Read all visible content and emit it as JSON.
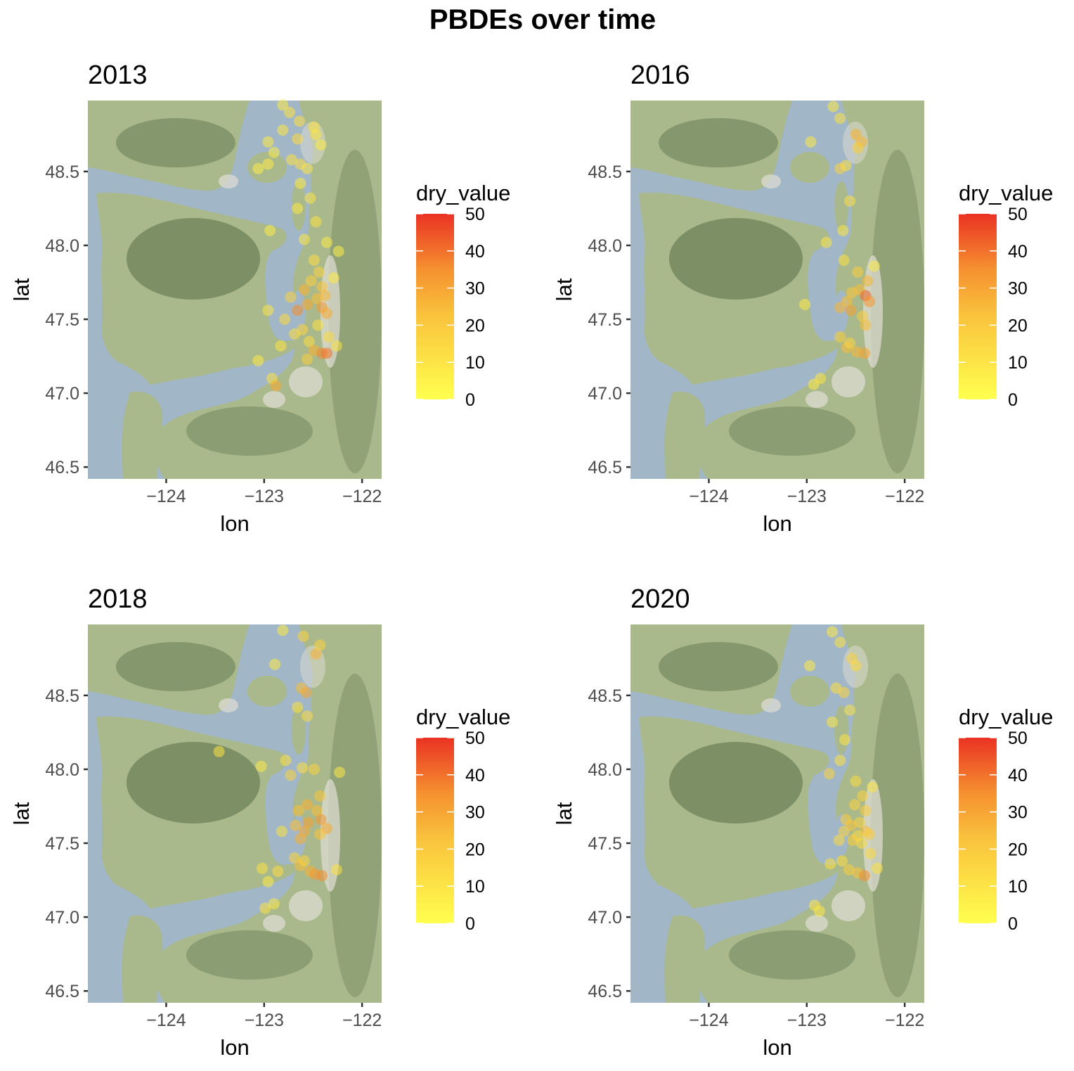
{
  "title": "PBDEs over time",
  "colors": {
    "water": "#a1b6c6",
    "land": "#a9b98c",
    "mountain": "#6e8158",
    "urban": "#e0ded4",
    "scale_low": "#ffff4f",
    "scale_mid": "#f9a52e",
    "scale_high": "#ea3223"
  },
  "chart_data": {
    "type": "scatter",
    "basemap": "terrain",
    "xlabel": "lon",
    "ylabel": "lat",
    "xlim": [
      -124.8,
      -121.8
    ],
    "ylim": [
      46.42,
      48.98
    ],
    "x_ticks": [
      -124,
      -123,
      -122
    ],
    "x_tick_labels": [
      "−124",
      "−123",
      "−122"
    ],
    "y_ticks": [
      46.5,
      47.0,
      47.5,
      48.0,
      48.5
    ],
    "y_tick_labels": [
      "46.5",
      "47.0",
      "47.5",
      "48.0",
      "48.5"
    ],
    "legend": {
      "title": "dry_value",
      "position": "right",
      "min": 0,
      "max": 50,
      "ticks": [
        0,
        10,
        20,
        30,
        40,
        50
      ],
      "tick_labels": [
        "0",
        "10",
        "20",
        "30",
        "40",
        "50"
      ]
    },
    "panels": [
      {
        "title": "2013",
        "points": [
          [
            -122.81,
            48.95,
            6
          ],
          [
            -122.74,
            48.9,
            8
          ],
          [
            -122.64,
            48.84,
            9
          ],
          [
            -122.49,
            48.8,
            8
          ],
          [
            -122.81,
            48.78,
            7
          ],
          [
            -122.66,
            48.72,
            10
          ],
          [
            -122.47,
            48.75,
            7
          ],
          [
            -122.96,
            48.7,
            6
          ],
          [
            -122.9,
            48.63,
            5
          ],
          [
            -122.42,
            48.68,
            6
          ],
          [
            -122.72,
            48.58,
            8
          ],
          [
            -122.63,
            48.55,
            9
          ],
          [
            -122.56,
            48.52,
            7
          ],
          [
            -123.06,
            48.52,
            5
          ],
          [
            -122.96,
            48.55,
            6
          ],
          [
            -122.63,
            48.42,
            6
          ],
          [
            -122.53,
            48.32,
            7
          ],
          [
            -122.66,
            48.25,
            6
          ],
          [
            -122.47,
            48.16,
            8
          ],
          [
            -122.59,
            48.04,
            7
          ],
          [
            -122.94,
            48.1,
            5
          ],
          [
            -122.36,
            48.02,
            6
          ],
          [
            -122.24,
            47.96,
            5
          ],
          [
            -122.49,
            47.9,
            9
          ],
          [
            -122.44,
            47.82,
            12
          ],
          [
            -122.52,
            47.76,
            14
          ],
          [
            -122.41,
            47.72,
            16
          ],
          [
            -122.59,
            47.7,
            22
          ],
          [
            -122.38,
            47.66,
            20
          ],
          [
            -122.46,
            47.64,
            18
          ],
          [
            -122.56,
            47.6,
            24
          ],
          [
            -122.41,
            47.58,
            28
          ],
          [
            -122.36,
            47.54,
            24
          ],
          [
            -122.66,
            47.56,
            30
          ],
          [
            -122.79,
            47.5,
            10
          ],
          [
            -122.61,
            47.43,
            12
          ],
          [
            -122.96,
            47.56,
            7
          ],
          [
            -122.69,
            47.4,
            9
          ],
          [
            -122.45,
            47.46,
            8
          ],
          [
            -122.54,
            47.35,
            10
          ],
          [
            -122.49,
            47.29,
            22
          ],
          [
            -122.41,
            47.27,
            32
          ],
          [
            -122.36,
            47.27,
            36
          ],
          [
            -122.56,
            47.23,
            14
          ],
          [
            -122.83,
            47.32,
            7
          ],
          [
            -123.06,
            47.22,
            6
          ],
          [
            -122.92,
            47.1,
            8
          ],
          [
            -122.88,
            47.05,
            24
          ],
          [
            -122.26,
            47.32,
            8
          ],
          [
            -122.34,
            47.38,
            10
          ],
          [
            -122.73,
            47.65,
            12
          ],
          [
            -122.29,
            47.78,
            6
          ]
        ]
      },
      {
        "title": "2016",
        "points": [
          [
            -122.73,
            48.94,
            6
          ],
          [
            -122.66,
            48.86,
            8
          ],
          [
            -122.5,
            48.75,
            22
          ],
          [
            -122.44,
            48.7,
            20
          ],
          [
            -122.48,
            48.66,
            14
          ],
          [
            -122.6,
            48.54,
            8
          ],
          [
            -122.66,
            48.52,
            12
          ],
          [
            -122.96,
            48.7,
            6
          ],
          [
            -122.56,
            48.3,
            9
          ],
          [
            -122.63,
            48.1,
            7
          ],
          [
            -122.62,
            47.9,
            8
          ],
          [
            -122.48,
            47.82,
            14
          ],
          [
            -122.38,
            47.76,
            20
          ],
          [
            -122.46,
            47.7,
            18
          ],
          [
            -122.54,
            47.68,
            16
          ],
          [
            -122.59,
            47.62,
            18
          ],
          [
            -122.4,
            47.66,
            40
          ],
          [
            -122.36,
            47.62,
            28
          ],
          [
            -122.55,
            47.56,
            26
          ],
          [
            -122.66,
            47.58,
            20
          ],
          [
            -122.43,
            47.52,
            14
          ],
          [
            -122.4,
            47.46,
            18
          ],
          [
            -122.66,
            47.38,
            14
          ],
          [
            -122.59,
            47.31,
            18
          ],
          [
            -122.49,
            47.28,
            20
          ],
          [
            -122.41,
            47.27,
            26
          ],
          [
            -122.56,
            47.34,
            12
          ],
          [
            -122.86,
            47.1,
            7
          ],
          [
            -122.93,
            47.06,
            6
          ],
          [
            -123.02,
            47.6,
            6
          ],
          [
            -122.8,
            48.02,
            7
          ],
          [
            -122.31,
            47.86,
            6
          ]
        ]
      },
      {
        "title": "2018",
        "points": [
          [
            -122.81,
            48.94,
            6
          ],
          [
            -122.6,
            48.9,
            12
          ],
          [
            -122.47,
            48.78,
            22
          ],
          [
            -122.43,
            48.84,
            12
          ],
          [
            -122.89,
            48.71,
            6
          ],
          [
            -122.62,
            48.55,
            18
          ],
          [
            -122.57,
            48.52,
            24
          ],
          [
            -122.66,
            48.42,
            8
          ],
          [
            -122.56,
            48.36,
            10
          ],
          [
            -123.46,
            48.12,
            8
          ],
          [
            -123.03,
            48.02,
            6
          ],
          [
            -122.78,
            48.06,
            8
          ],
          [
            -122.61,
            48.01,
            9
          ],
          [
            -122.49,
            48.0,
            12
          ],
          [
            -122.73,
            47.96,
            12
          ],
          [
            -122.23,
            47.98,
            6
          ],
          [
            -122.43,
            47.82,
            16
          ],
          [
            -122.56,
            47.76,
            22
          ],
          [
            -122.46,
            47.72,
            18
          ],
          [
            -122.65,
            47.72,
            18
          ],
          [
            -122.55,
            47.64,
            26
          ],
          [
            -122.42,
            47.66,
            28
          ],
          [
            -122.36,
            47.6,
            24
          ],
          [
            -122.59,
            47.58,
            24
          ],
          [
            -122.68,
            47.62,
            18
          ],
          [
            -122.43,
            47.56,
            16
          ],
          [
            -122.63,
            47.53,
            22
          ],
          [
            -122.82,
            47.58,
            8
          ],
          [
            -122.69,
            47.4,
            12
          ],
          [
            -122.63,
            47.35,
            18
          ],
          [
            -122.53,
            47.31,
            22
          ],
          [
            -122.48,
            47.29,
            28
          ],
          [
            -122.41,
            47.28,
            30
          ],
          [
            -122.59,
            47.38,
            12
          ],
          [
            -122.86,
            47.31,
            10
          ],
          [
            -123.02,
            47.33,
            8
          ],
          [
            -122.96,
            47.24,
            6
          ],
          [
            -122.99,
            47.06,
            8
          ],
          [
            -122.9,
            47.09,
            6
          ],
          [
            -122.26,
            47.32,
            8
          ]
        ]
      },
      {
        "title": "2020",
        "points": [
          [
            -122.74,
            48.93,
            6
          ],
          [
            -122.66,
            48.86,
            8
          ],
          [
            -122.54,
            48.75,
            12
          ],
          [
            -122.5,
            48.7,
            10
          ],
          [
            -122.97,
            48.7,
            6
          ],
          [
            -122.7,
            48.55,
            9
          ],
          [
            -122.62,
            48.52,
            12
          ],
          [
            -122.56,
            48.4,
            8
          ],
          [
            -122.74,
            48.32,
            7
          ],
          [
            -122.61,
            48.2,
            7
          ],
          [
            -122.66,
            48.06,
            8
          ],
          [
            -122.77,
            47.97,
            12
          ],
          [
            -122.5,
            47.92,
            10
          ],
          [
            -122.33,
            47.88,
            8
          ],
          [
            -122.43,
            47.82,
            12
          ],
          [
            -122.51,
            47.76,
            12
          ],
          [
            -122.4,
            47.72,
            14
          ],
          [
            -122.6,
            47.66,
            14
          ],
          [
            -122.46,
            47.64,
            12
          ],
          [
            -122.55,
            47.62,
            16
          ],
          [
            -122.4,
            47.58,
            18
          ],
          [
            -122.36,
            47.56,
            14
          ],
          [
            -122.62,
            47.58,
            12
          ],
          [
            -122.48,
            47.55,
            10
          ],
          [
            -122.67,
            47.52,
            10
          ],
          [
            -122.53,
            47.52,
            14
          ],
          [
            -122.44,
            47.5,
            10
          ],
          [
            -122.64,
            47.38,
            10
          ],
          [
            -122.57,
            47.32,
            14
          ],
          [
            -122.48,
            47.3,
            16
          ],
          [
            -122.41,
            47.28,
            30
          ],
          [
            -122.76,
            47.36,
            8
          ],
          [
            -122.92,
            47.08,
            7
          ],
          [
            -122.87,
            47.04,
            6
          ],
          [
            -122.28,
            47.33,
            8
          ],
          [
            -122.35,
            47.43,
            10
          ]
        ]
      }
    ]
  }
}
